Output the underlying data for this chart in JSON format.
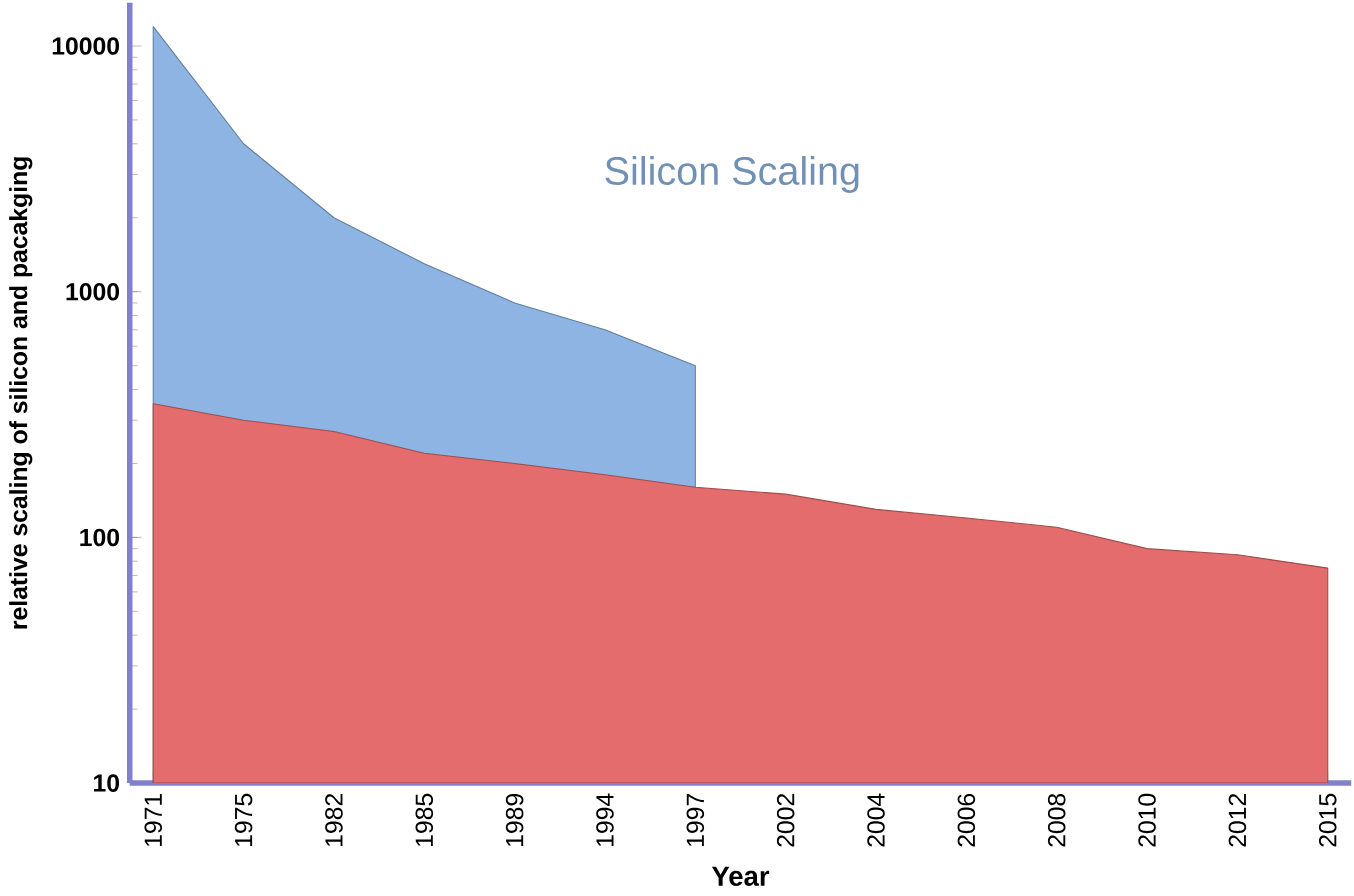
{
  "chart_data": {
    "type": "area",
    "xlabel": "Year",
    "ylabel": "relative scaling of silicon and pacakging",
    "categories": [
      "1971",
      "1975",
      "1982",
      "1985",
      "1989",
      "1994",
      "1997",
      "2002",
      "2004",
      "2006",
      "2008",
      "2010",
      "2012",
      "2015"
    ],
    "series": [
      {
        "name": "Silicon Scaling",
        "color": "#8db4e2",
        "values": [
          12000,
          4000,
          2000,
          1300,
          900,
          700,
          500,
          null,
          null,
          null,
          null,
          null,
          null,
          null
        ]
      },
      {
        "color": "#e46c6c",
        "values": [
          350,
          300,
          270,
          220,
          200,
          180,
          160,
          150,
          130,
          120,
          110,
          90,
          85,
          75
        ]
      }
    ],
    "ylim": [
      10,
      15000
    ],
    "yticks": [
      10,
      100,
      1000,
      10000
    ],
    "log": true,
    "grid": false
  }
}
